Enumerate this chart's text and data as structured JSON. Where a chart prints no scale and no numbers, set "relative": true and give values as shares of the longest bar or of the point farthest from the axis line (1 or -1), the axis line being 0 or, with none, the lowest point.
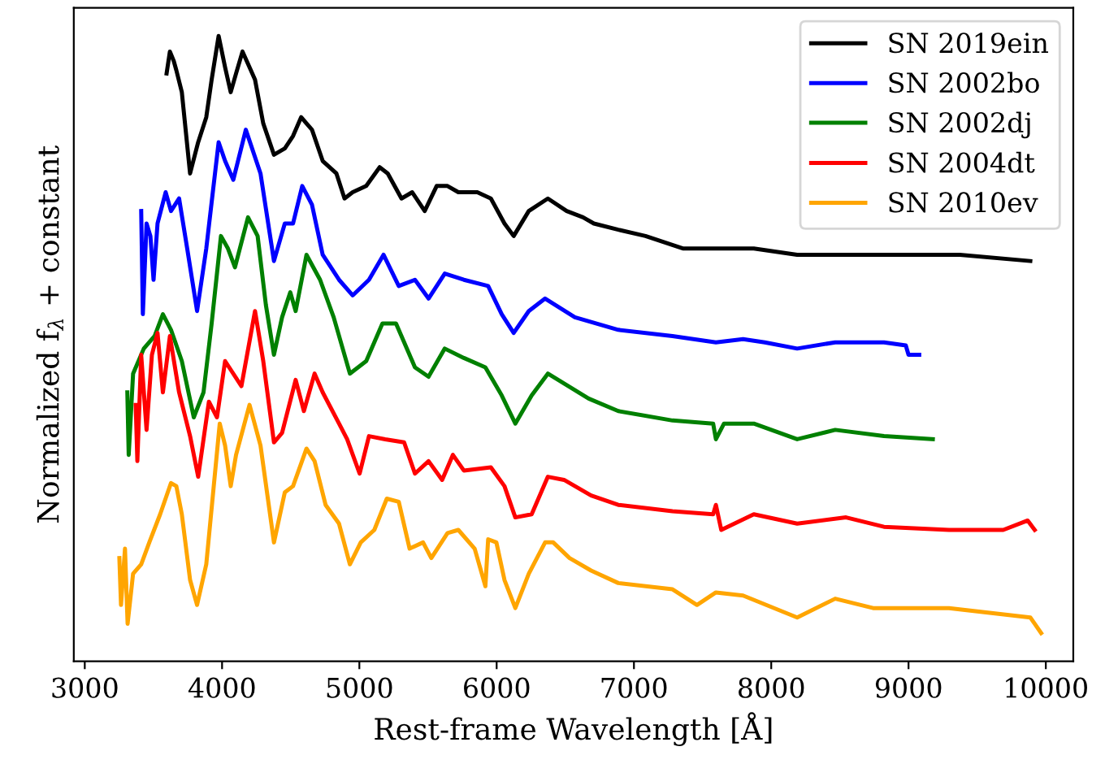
{
  "chart_data": {
    "type": "line",
    "relative": true,
    "xlabel": "Rest-frame Wavelength [Å]",
    "ylabel": "Normalized f$_{λ}$ + constant",
    "xlim": [
      2920,
      10200
    ],
    "xticks": [
      3000,
      4000,
      5000,
      6000,
      7000,
      8000,
      9000,
      10000
    ],
    "legend": "top right",
    "grid": false,
    "marker": "none",
    "line_style": "solid",
    "series": [
      {
        "name": "SN 2019ein",
        "color": "#000000",
        "x": [
          3596,
          3620,
          3648,
          3667,
          3707,
          3767,
          3826,
          3885,
          3924,
          3975,
          4022,
          4063,
          4102,
          4149,
          4200,
          4240,
          4300,
          4378,
          4457,
          4517,
          4576,
          4615,
          4655,
          4733,
          4833,
          4892,
          4951,
          5050,
          5148,
          5207,
          5307,
          5385,
          5476,
          5563,
          5642,
          5721,
          5859,
          5958,
          6057,
          6124,
          6234,
          6373,
          6510,
          6629,
          6708,
          6886,
          7084,
          7360,
          7597,
          7873,
          8189,
          8545,
          8861,
          9137,
          9374,
          9887
        ],
        "values": [
          0.94,
          0.975,
          0.96,
          0.945,
          0.91,
          0.78,
          0.83,
          0.87,
          0.93,
          1.0,
          0.95,
          0.91,
          0.94,
          0.975,
          0.95,
          0.93,
          0.86,
          0.81,
          0.82,
          0.84,
          0.87,
          0.86,
          0.85,
          0.8,
          0.78,
          0.74,
          0.75,
          0.76,
          0.79,
          0.78,
          0.74,
          0.75,
          0.72,
          0.76,
          0.76,
          0.75,
          0.75,
          0.74,
          0.7,
          0.68,
          0.72,
          0.74,
          0.72,
          0.71,
          0.7,
          0.69,
          0.68,
          0.66,
          0.66,
          0.66,
          0.65,
          0.65,
          0.65,
          0.65,
          0.65,
          0.64
        ]
      },
      {
        "name": "SN 2002bo",
        "color": "#0000ff",
        "x": [
          3411,
          3423,
          3450,
          3478,
          3501,
          3530,
          3589,
          3628,
          3687,
          3746,
          3818,
          3885,
          3975,
          4022,
          4082,
          4173,
          4280,
          4378,
          4457,
          4517,
          4584,
          4655,
          4733,
          4852,
          4951,
          5070,
          5176,
          5287,
          5405,
          5504,
          5622,
          5761,
          5938,
          6037,
          6124,
          6234,
          6353,
          6570,
          6886,
          7281,
          7597,
          7795,
          7953,
          8189,
          8466,
          8821,
          8980,
          9000,
          9078
        ],
        "values": [
          0.72,
          0.555,
          0.7,
          0.68,
          0.61,
          0.7,
          0.75,
          0.72,
          0.74,
          0.66,
          0.56,
          0.66,
          0.83,
          0.8,
          0.77,
          0.85,
          0.78,
          0.64,
          0.7,
          0.7,
          0.76,
          0.73,
          0.65,
          0.61,
          0.585,
          0.61,
          0.65,
          0.6,
          0.61,
          0.58,
          0.62,
          0.61,
          0.6,
          0.555,
          0.525,
          0.56,
          0.58,
          0.55,
          0.53,
          0.52,
          0.51,
          0.515,
          0.51,
          0.5,
          0.51,
          0.51,
          0.505,
          0.49,
          0.49
        ]
      },
      {
        "name": "SN 2002dj",
        "color": "#008000",
        "x": [
          3310,
          3320,
          3352,
          3430,
          3509,
          3569,
          3628,
          3707,
          3794,
          3865,
          3924,
          3992,
          4043,
          4094,
          4189,
          4259,
          4319,
          4378,
          4437,
          4497,
          4536,
          4615,
          4714,
          4813,
          4931,
          5050,
          5168,
          5267,
          5405,
          5504,
          5622,
          5761,
          5918,
          6037,
          6136,
          6255,
          6373,
          6670,
          6886,
          7281,
          7577,
          7597,
          7656,
          7873,
          8189,
          8466,
          8821,
          9177
        ],
        "values": [
          0.43,
          0.33,
          0.46,
          0.5,
          0.52,
          0.555,
          0.53,
          0.48,
          0.39,
          0.43,
          0.54,
          0.68,
          0.66,
          0.63,
          0.71,
          0.68,
          0.57,
          0.49,
          0.55,
          0.59,
          0.56,
          0.65,
          0.61,
          0.55,
          0.46,
          0.48,
          0.54,
          0.54,
          0.47,
          0.455,
          0.5,
          0.485,
          0.47,
          0.425,
          0.38,
          0.425,
          0.46,
          0.42,
          0.4,
          0.385,
          0.38,
          0.355,
          0.38,
          0.38,
          0.355,
          0.37,
          0.36,
          0.355
        ]
      },
      {
        "name": "SN 2004dt",
        "color": "#ff0000",
        "x": [
          3371,
          3383,
          3411,
          3450,
          3489,
          3530,
          3569,
          3620,
          3687,
          3767,
          3826,
          3904,
          3963,
          4022,
          4141,
          4240,
          4300,
          4378,
          4437,
          4536,
          4596,
          4674,
          4733,
          4852,
          4911,
          5002,
          5070,
          5188,
          5326,
          5405,
          5504,
          5603,
          5681,
          5761,
          5958,
          6057,
          6136,
          6255,
          6373,
          6491,
          6688,
          6886,
          7281,
          7577,
          7597,
          7636,
          7873,
          8189,
          8545,
          8821,
          9295,
          9690,
          9868,
          9919
        ],
        "values": [
          0.41,
          0.32,
          0.49,
          0.37,
          0.49,
          0.525,
          0.43,
          0.52,
          0.43,
          0.36,
          0.295,
          0.415,
          0.39,
          0.48,
          0.44,
          0.56,
          0.48,
          0.35,
          0.365,
          0.45,
          0.4,
          0.46,
          0.43,
          0.38,
          0.355,
          0.3,
          0.36,
          0.355,
          0.35,
          0.3,
          0.32,
          0.29,
          0.33,
          0.305,
          0.31,
          0.28,
          0.23,
          0.235,
          0.295,
          0.29,
          0.265,
          0.25,
          0.24,
          0.235,
          0.25,
          0.21,
          0.235,
          0.22,
          0.23,
          0.215,
          0.21,
          0.21,
          0.225,
          0.21
        ]
      },
      {
        "name": "SN 2010ev",
        "color": "#ffa500",
        "x": [
          3252,
          3264,
          3293,
          3312,
          3352,
          3411,
          3470,
          3549,
          3628,
          3667,
          3707,
          3767,
          3818,
          3885,
          3983,
          4022,
          4063,
          4102,
          4200,
          4280,
          4378,
          4457,
          4517,
          4615,
          4674,
          4754,
          4852,
          4931,
          5010,
          5109,
          5200,
          5287,
          5366,
          5464,
          5524,
          5642,
          5721,
          5840,
          5918,
          5938,
          5998,
          6057,
          6136,
          6234,
          6353,
          6412,
          6531,
          6688,
          6886,
          7281,
          7459,
          7597,
          7795,
          8189,
          8466,
          8742,
          9295,
          9887,
          9966
        ],
        "values": [
          0.165,
          0.09,
          0.18,
          0.06,
          0.14,
          0.155,
          0.19,
          0.235,
          0.285,
          0.28,
          0.235,
          0.13,
          0.09,
          0.155,
          0.38,
          0.345,
          0.28,
          0.33,
          0.41,
          0.345,
          0.19,
          0.27,
          0.28,
          0.34,
          0.32,
          0.25,
          0.22,
          0.155,
          0.19,
          0.21,
          0.26,
          0.255,
          0.18,
          0.19,
          0.165,
          0.205,
          0.21,
          0.18,
          0.12,
          0.195,
          0.19,
          0.13,
          0.085,
          0.14,
          0.19,
          0.19,
          0.165,
          0.145,
          0.125,
          0.115,
          0.09,
          0.11,
          0.105,
          0.07,
          0.1,
          0.085,
          0.085,
          0.07,
          0.045
        ]
      }
    ]
  }
}
